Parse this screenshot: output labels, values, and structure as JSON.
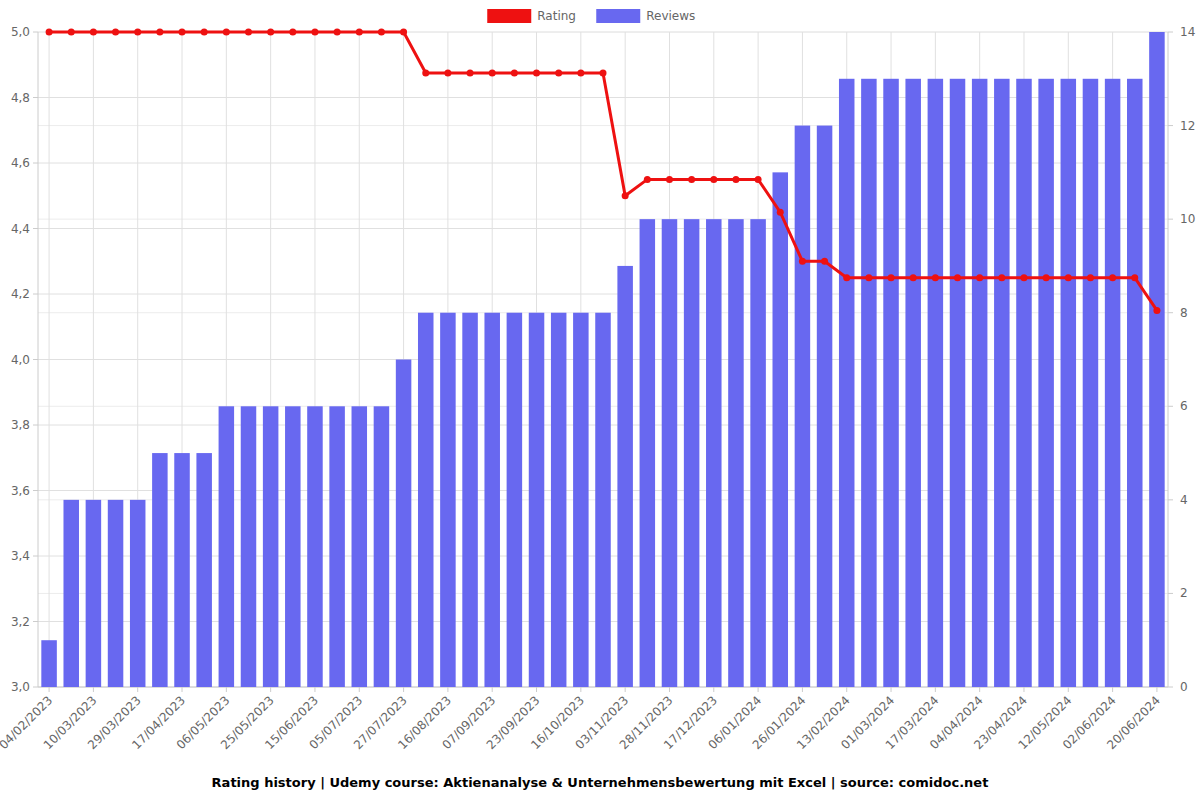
{
  "chart_data": {
    "type": "bar",
    "title": "Rating history | Udemy course: Aktienanalyse & Unternehmensbewertung mit Excel | source: comidoc.net",
    "categories": [
      "04/02/2023",
      null,
      "10/03/2023",
      null,
      "29/03/2023",
      null,
      "17/04/2023",
      null,
      "06/05/2023",
      null,
      "25/05/2023",
      null,
      "15/06/2023",
      null,
      "05/07/2023",
      null,
      "27/07/2023",
      null,
      "16/08/2023",
      null,
      "07/09/2023",
      null,
      "23/09/2023",
      null,
      "16/10/2023",
      null,
      "03/11/2023",
      null,
      "28/11/2023",
      null,
      "17/12/2023",
      null,
      "06/01/2024",
      null,
      "26/01/2024",
      null,
      "13/02/2024",
      null,
      "01/03/2024",
      null,
      "17/03/2024",
      null,
      "04/04/2024",
      null,
      "23/04/2024",
      null,
      "12/05/2024",
      null,
      "02/06/2024",
      null,
      "20/06/2024"
    ],
    "series": [
      {
        "name": "Rating",
        "type": "line",
        "color": "#ee1111",
        "marker": "circle",
        "values": [
          5,
          5,
          5,
          5,
          5,
          5,
          5,
          5,
          5,
          5,
          5,
          5,
          5,
          5,
          5,
          5,
          5,
          4.875,
          4.875,
          4.875,
          4.875,
          4.875,
          4.875,
          4.875,
          4.875,
          4.875,
          4.5,
          4.55,
          4.55,
          4.55,
          4.55,
          4.55,
          4.55,
          4.45,
          4.3,
          4.3,
          4.25,
          4.25,
          4.25,
          4.25,
          4.25,
          4.25,
          4.25,
          4.25,
          4.25,
          4.25,
          4.25,
          4.25,
          4.25,
          4.25,
          4.15
        ]
      },
      {
        "name": "Reviews",
        "type": "bar",
        "axis": "y2",
        "color": "#6868f0",
        "values": [
          1,
          4,
          4,
          4,
          4,
          5,
          5,
          5,
          6,
          6,
          6,
          6,
          6,
          6,
          6,
          6,
          7,
          8,
          8,
          8,
          8,
          8,
          8,
          8,
          8,
          8,
          9,
          10,
          10,
          10,
          10,
          10,
          10,
          11,
          12,
          12,
          13,
          13,
          13,
          13,
          13,
          13,
          13,
          13,
          13,
          13,
          13,
          13,
          13,
          13,
          14
        ]
      }
    ],
    "ylim": [
      3,
      5
    ],
    "yticks": [
      {
        "value": 3,
        "label": "3,0"
      },
      {
        "value": 3.2,
        "label": "3,2"
      },
      {
        "value": 3.4,
        "label": "3,4"
      },
      {
        "value": 3.6,
        "label": "3,6"
      },
      {
        "value": 3.8,
        "label": "3,8"
      },
      {
        "value": 4,
        "label": "4,0"
      },
      {
        "value": 4.2,
        "label": "4,2"
      },
      {
        "value": 4.4,
        "label": "4,4"
      },
      {
        "value": 4.6,
        "label": "4,6"
      },
      {
        "value": 4.8,
        "label": "4,8"
      },
      {
        "value": 5,
        "label": "5,0"
      }
    ],
    "y2lim": [
      0,
      14
    ],
    "y2ticks": [
      0,
      2,
      4,
      6,
      8,
      10,
      12,
      14
    ],
    "grid": true,
    "legend": "top"
  }
}
